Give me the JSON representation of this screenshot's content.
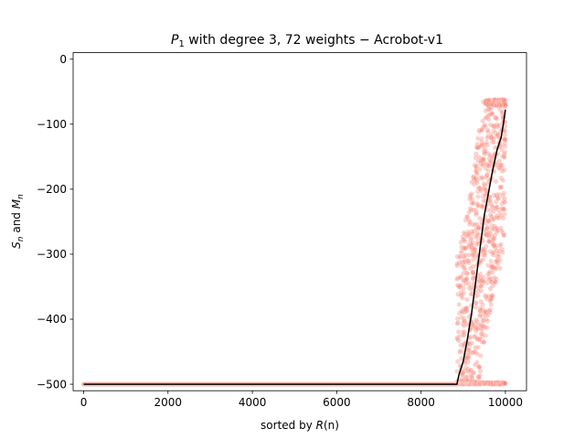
{
  "chart_data": {
    "type": "scatter",
    "title_parts": {
      "p": "P",
      "sub": "1",
      "rest": " with degree 3, 72 weights − Acrobot-v1"
    },
    "xlabel_parts": {
      "pre": "sorted by ",
      "italic": "R",
      "post": "(n)"
    },
    "ylabel_parts": {
      "s": "S",
      "s_sub": "n",
      "mid": " and ",
      "m": "M",
      "m_sub": "n"
    },
    "xlim": [
      -250,
      10500
    ],
    "ylim": [
      -510,
      10
    ],
    "xticks": [
      0,
      2000,
      4000,
      6000,
      8000,
      10000
    ],
    "yticks": [
      0,
      -100,
      -200,
      -300,
      -400,
      -500
    ],
    "xtick_labels": [
      "0",
      "2000",
      "4000",
      "6000",
      "8000",
      "10000"
    ],
    "ytick_labels": [
      "0",
      "−100",
      "−200",
      "−300",
      "−400",
      "−500"
    ],
    "scatter_color": "#FA8072",
    "line_color": "#000000",
    "scatter_series": {
      "n": 10000,
      "flat_until": 8850,
      "flat_value": -500,
      "max_value": -62
    },
    "mean_line": {
      "x": [
        0,
        8850,
        8900,
        8950,
        9000,
        9100,
        9200,
        9300,
        9400,
        9500,
        9600,
        9700,
        9800,
        9900,
        9950,
        10000
      ],
      "y": [
        -500,
        -500,
        -485,
        -475,
        -465,
        -430,
        -390,
        -340,
        -290,
        -240,
        -205,
        -170,
        -140,
        -120,
        -100,
        -78
      ]
    }
  }
}
